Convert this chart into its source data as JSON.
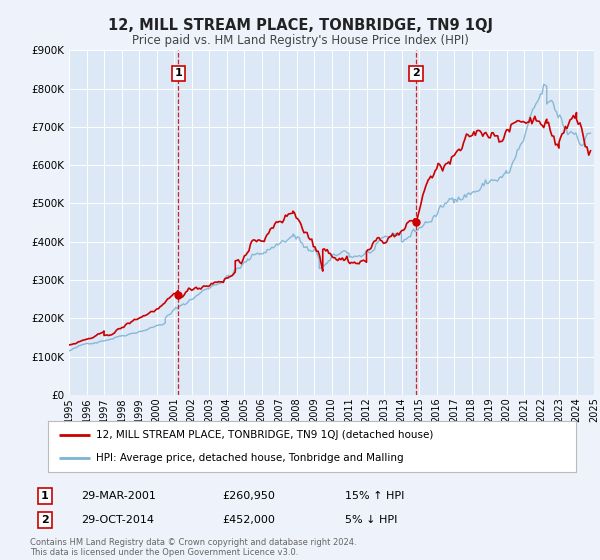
{
  "title": "12, MILL STREAM PLACE, TONBRIDGE, TN9 1QJ",
  "subtitle": "Price paid vs. HM Land Registry's House Price Index (HPI)",
  "bg_color": "#eef2fa",
  "plot_bg_color": "#dce8f5",
  "grid_color": "#ffffff",
  "sale1_date": 2001.24,
  "sale1_price": 260950,
  "sale1_label": "1",
  "sale1_note": "29-MAR-2001",
  "sale1_amount": "£260,950",
  "sale1_hpi": "15% ↑ HPI",
  "sale2_date": 2014.83,
  "sale2_price": 452000,
  "sale2_label": "2",
  "sale2_note": "29-OCT-2014",
  "sale2_amount": "£452,000",
  "sale2_hpi": "5% ↓ HPI",
  "red_color": "#cc0000",
  "blue_color": "#7fb3d3",
  "ylim": [
    0,
    900000
  ],
  "xlim_start": 1995,
  "xlim_end": 2025,
  "yticks": [
    0,
    100000,
    200000,
    300000,
    400000,
    500000,
    600000,
    700000,
    800000,
    900000
  ],
  "ytick_labels": [
    "£0",
    "£100K",
    "£200K",
    "£300K",
    "£400K",
    "£500K",
    "£600K",
    "£700K",
    "£800K",
    "£900K"
  ],
  "xticks": [
    1995,
    1996,
    1997,
    1998,
    1999,
    2000,
    2001,
    2002,
    2003,
    2004,
    2005,
    2006,
    2007,
    2008,
    2009,
    2010,
    2011,
    2012,
    2013,
    2014,
    2015,
    2016,
    2017,
    2018,
    2019,
    2020,
    2021,
    2022,
    2023,
    2024,
    2025
  ],
  "legend_label_red": "12, MILL STREAM PLACE, TONBRIDGE, TN9 1QJ (detached house)",
  "legend_label_blue": "HPI: Average price, detached house, Tonbridge and Malling",
  "footer": "Contains HM Land Registry data © Crown copyright and database right 2024.\nThis data is licensed under the Open Government Licence v3.0."
}
